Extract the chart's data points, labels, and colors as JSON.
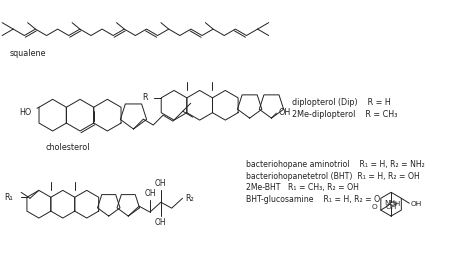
{
  "background_color": "#ffffff",
  "fig_width": 4.74,
  "fig_height": 2.6,
  "dpi": 100,
  "font_size": 5.8,
  "text_color": "#222222",
  "line_width": 0.7,
  "squalene_label": "squalene",
  "cholesterol_label": "cholesterol",
  "dipl_line1": "diplopterol (Dip)    R = H",
  "dipl_line2": "2Me-diplopterol    R = CH₃",
  "bact_line1": "bacteriohopane aminotriol    R₁ = H, R₂ = NH₂",
  "bact_line2": "bacteriohopanetetrol (BHT)  R₁ = H, R₂ = OH",
  "bact_line3": "2Me-BHT   R₁ = CH₃, R₂ = OH",
  "bact_line4": "BHT-glucosamine    R₁ = H, R₂ = O"
}
